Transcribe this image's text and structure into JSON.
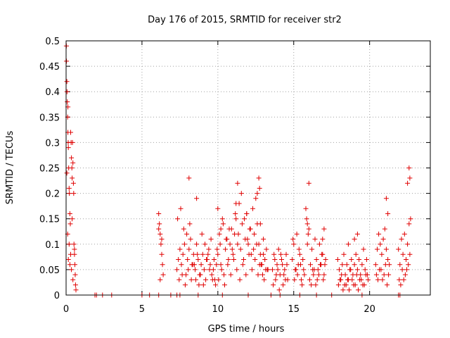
{
  "chart_data": {
    "type": "scatter",
    "title": "Day 176 of 2015, SRMTID for receiver str2",
    "xlabel": "GPS time / hours",
    "ylabel": "SRMTID / TECUs",
    "xlim": [
      0,
      24
    ],
    "ylim": [
      0,
      0.5
    ],
    "xticks": [
      0,
      5,
      10,
      15,
      20
    ],
    "yticks": [
      0,
      0.05,
      0.1,
      0.15,
      0.2,
      0.25,
      0.3,
      0.35,
      0.4,
      0.45,
      0.5
    ],
    "grid": true,
    "marker": "+",
    "color": "#e00000",
    "series": [
      {
        "name": "str2",
        "x": [
          0.02,
          0.03,
          0.05,
          0.06,
          0.08,
          0.1,
          0.12,
          0.14,
          0.15,
          0.17,
          0.2,
          0.22,
          0.25,
          0.28,
          0.3,
          0.33,
          0.35,
          0.38,
          0.4,
          0.42,
          0.45,
          0.48,
          0.5,
          0.52,
          0.55,
          0.58,
          0.6,
          0.62,
          0.65,
          0.1,
          0.2,
          0.3,
          0.15,
          0.25,
          0.35,
          0.45,
          0.05,
          0.12,
          0.4,
          0.55,
          1.9,
          2.0,
          2.4,
          3.0,
          5.0,
          5.5,
          6.1,
          6.9,
          7.3,
          7.5,
          8.7,
          10.3,
          12.0,
          13.5,
          14.1,
          15.4,
          16.5,
          17.5,
          19.5,
          21.9,
          22.0,
          6.1,
          6.15,
          6.2,
          6.25,
          6.3,
          6.35,
          6.4,
          6.2,
          6.3,
          6.1,
          7.3,
          7.4,
          7.5,
          7.6,
          7.7,
          7.8,
          7.9,
          8.0,
          8.1,
          8.2,
          8.3,
          8.4,
          8.5,
          8.6,
          8.7,
          8.8,
          8.9,
          9.0,
          9.1,
          9.2,
          9.3,
          9.4,
          9.5,
          9.6,
          9.7,
          9.8,
          9.9,
          7.35,
          7.55,
          7.75,
          7.95,
          8.15,
          8.35,
          8.55,
          8.75,
          8.95,
          9.15,
          9.35,
          9.55,
          9.75,
          9.95,
          7.45,
          7.65,
          7.85,
          8.05,
          8.25,
          8.45,
          8.65,
          8.85,
          9.05,
          9.25,
          9.45,
          9.65,
          9.85,
          8.1,
          8.6,
          10.0,
          10.1,
          10.2,
          10.3,
          10.4,
          10.5,
          10.6,
          10.7,
          10.8,
          10.9,
          11.0,
          11.1,
          11.2,
          11.3,
          11.4,
          11.5,
          11.6,
          11.7,
          11.8,
          11.9,
          12.0,
          12.1,
          12.2,
          12.3,
          12.4,
          12.5,
          12.6,
          12.7,
          12.8,
          12.9,
          13.0,
          13.1,
          13.2,
          13.3,
          10.05,
          10.25,
          10.45,
          10.65,
          10.85,
          11.05,
          11.25,
          11.45,
          11.65,
          11.85,
          12.05,
          12.25,
          12.45,
          12.65,
          12.85,
          13.05,
          13.25,
          10.15,
          10.35,
          10.55,
          10.75,
          10.95,
          11.15,
          11.35,
          11.55,
          11.75,
          11.95,
          12.15,
          12.35,
          12.55,
          12.75,
          12.95,
          13.15,
          12.7,
          12.75,
          12.6,
          11.3,
          11.2,
          10.0,
          10.2,
          11.9,
          12.8,
          13.0,
          13.6,
          13.7,
          13.8,
          13.9,
          14.0,
          14.1,
          14.2,
          14.3,
          14.4,
          14.5,
          14.6,
          13.65,
          13.85,
          14.05,
          14.25,
          14.45,
          13.75,
          13.95,
          14.15,
          14.35,
          14.55,
          14.9,
          15.0,
          15.1,
          15.2,
          15.3,
          15.4,
          15.5,
          15.6,
          15.7,
          14.95,
          15.15,
          15.35,
          15.55,
          15.05,
          15.25,
          15.45,
          15.65,
          15.8,
          15.9,
          16.0,
          16.1,
          16.2,
          16.3,
          16.4,
          16.5,
          16.6,
          16.7,
          16.8,
          16.9,
          17.0,
          17.1,
          15.85,
          16.05,
          16.25,
          16.45,
          16.65,
          16.85,
          17.05,
          15.95,
          16.15,
          16.35,
          16.55,
          16.75,
          16.95,
          16.0,
          15.9,
          16.9,
          17.0,
          17.9,
          18.0,
          18.1,
          18.2,
          18.3,
          18.4,
          18.5,
          18.6,
          18.7,
          18.8,
          18.9,
          19.0,
          19.1,
          19.2,
          19.3,
          19.4,
          19.5,
          19.6,
          19.7,
          19.8,
          19.9,
          17.95,
          18.15,
          18.35,
          18.55,
          18.75,
          18.95,
          19.15,
          19.35,
          19.55,
          19.75,
          18.05,
          18.25,
          18.45,
          18.65,
          18.85,
          19.05,
          19.25,
          19.45,
          19.65,
          19.85,
          18.6,
          19.0,
          19.2,
          20.4,
          20.5,
          20.6,
          20.7,
          20.8,
          20.9,
          21.0,
          21.1,
          21.2,
          21.3,
          20.45,
          20.65,
          20.85,
          21.05,
          21.25,
          20.55,
          20.75,
          20.95,
          21.15,
          21.1,
          21.2,
          21.9,
          22.0,
          22.1,
          22.2,
          22.3,
          22.4,
          22.5,
          22.6,
          22.7,
          21.95,
          22.15,
          22.35,
          22.55,
          22.05,
          22.25,
          22.45,
          22.65,
          22.6,
          22.65,
          22.5
        ],
        "y": [
          0.49,
          0.46,
          0.42,
          0.4,
          0.38,
          0.35,
          0.32,
          0.3,
          0.29,
          0.25,
          0.21,
          0.2,
          0.16,
          0.14,
          0.32,
          0.3,
          0.27,
          0.25,
          0.23,
          0.3,
          0.26,
          0.22,
          0.2,
          0.1,
          0.08,
          0.06,
          0.04,
          0.02,
          0.01,
          0.12,
          0.1,
          0.08,
          0.07,
          0.06,
          0.05,
          0.03,
          0.24,
          0.37,
          0.15,
          0.09,
          0.0,
          0.0,
          0.0,
          0.0,
          0.0,
          0.0,
          0.0,
          0.0,
          0.0,
          0.0,
          0.0,
          0.0,
          0.0,
          0.0,
          0.0,
          0.0,
          0.0,
          0.0,
          0.0,
          0.0,
          0.0,
          0.16,
          0.14,
          0.12,
          0.1,
          0.08,
          0.06,
          0.04,
          0.03,
          0.11,
          0.13,
          0.05,
          0.07,
          0.09,
          0.06,
          0.08,
          0.1,
          0.04,
          0.07,
          0.09,
          0.11,
          0.06,
          0.08,
          0.05,
          0.1,
          0.07,
          0.04,
          0.06,
          0.08,
          0.05,
          0.03,
          0.07,
          0.09,
          0.06,
          0.04,
          0.05,
          0.03,
          0.06,
          0.15,
          0.17,
          0.13,
          0.12,
          0.14,
          0.06,
          0.03,
          0.02,
          0.12,
          0.1,
          0.08,
          0.11,
          0.07,
          0.09,
          0.03,
          0.04,
          0.02,
          0.05,
          0.03,
          0.06,
          0.08,
          0.04,
          0.02,
          0.07,
          0.05,
          0.03,
          0.02,
          0.23,
          0.19,
          0.08,
          0.12,
          0.06,
          0.15,
          0.04,
          0.09,
          0.11,
          0.07,
          0.1,
          0.13,
          0.08,
          0.12,
          0.15,
          0.1,
          0.18,
          0.09,
          0.14,
          0.07,
          0.11,
          0.16,
          0.1,
          0.13,
          0.08,
          0.17,
          0.12,
          0.19,
          0.14,
          0.1,
          0.08,
          0.06,
          0.11,
          0.07,
          0.09,
          0.05,
          0.03,
          0.05,
          0.02,
          0.06,
          0.04,
          0.07,
          0.05,
          0.03,
          0.06,
          0.04,
          0.08,
          0.05,
          0.07,
          0.04,
          0.06,
          0.03,
          0.05,
          0.1,
          0.14,
          0.11,
          0.13,
          0.09,
          0.16,
          0.12,
          0.2,
          0.15,
          0.11,
          0.13,
          0.09,
          0.1,
          0.06,
          0.04,
          0.05,
          0.23,
          0.21,
          0.2,
          0.22,
          0.18,
          0.17,
          0.13,
          0.16,
          0.14,
          0.08,
          0.05,
          0.08,
          0.03,
          0.06,
          0.09,
          0.04,
          0.07,
          0.02,
          0.05,
          0.08,
          0.03,
          0.02,
          0.04,
          0.01,
          0.06,
          0.03,
          0.07,
          0.05,
          0.08,
          0.04,
          0.06,
          0.07,
          0.1,
          0.05,
          0.12,
          0.06,
          0.08,
          0.03,
          0.07,
          0.04,
          0.11,
          0.05,
          0.09,
          0.02,
          0.03,
          0.04,
          0.06,
          0.05,
          0.17,
          0.1,
          0.13,
          0.06,
          0.09,
          0.04,
          0.11,
          0.07,
          0.05,
          0.1,
          0.06,
          0.08,
          0.04,
          0.07,
          0.15,
          0.03,
          0.05,
          0.02,
          0.04,
          0.08,
          0.06,
          0.12,
          0.02,
          0.05,
          0.03,
          0.06,
          0.03,
          0.22,
          0.14,
          0.11,
          0.13,
          0.07,
          0.05,
          0.03,
          0.06,
          0.08,
          0.04,
          0.06,
          0.03,
          0.05,
          0.07,
          0.04,
          0.06,
          0.08,
          0.05,
          0.07,
          0.04,
          0.06,
          0.09,
          0.05,
          0.07,
          0.03,
          0.02,
          0.04,
          0.02,
          0.03,
          0.05,
          0.02,
          0.04,
          0.03,
          0.02,
          0.04,
          0.03,
          0.01,
          0.02,
          0.01,
          0.03,
          0.02,
          0.01,
          0.03,
          0.02,
          0.04,
          0.1,
          0.11,
          0.12,
          0.06,
          0.09,
          0.12,
          0.1,
          0.08,
          0.11,
          0.13,
          0.09,
          0.07,
          0.06,
          0.04,
          0.05,
          0.03,
          0.06,
          0.04,
          0.03,
          0.05,
          0.04,
          0.02,
          0.19,
          0.16,
          0.09,
          0.06,
          0.11,
          0.08,
          0.12,
          0.07,
          0.1,
          0.14,
          0.15,
          0.03,
          0.05,
          0.04,
          0.06,
          0.02,
          0.03,
          0.05,
          0.08,
          0.25,
          0.23,
          0.22
        ]
      }
    ]
  }
}
